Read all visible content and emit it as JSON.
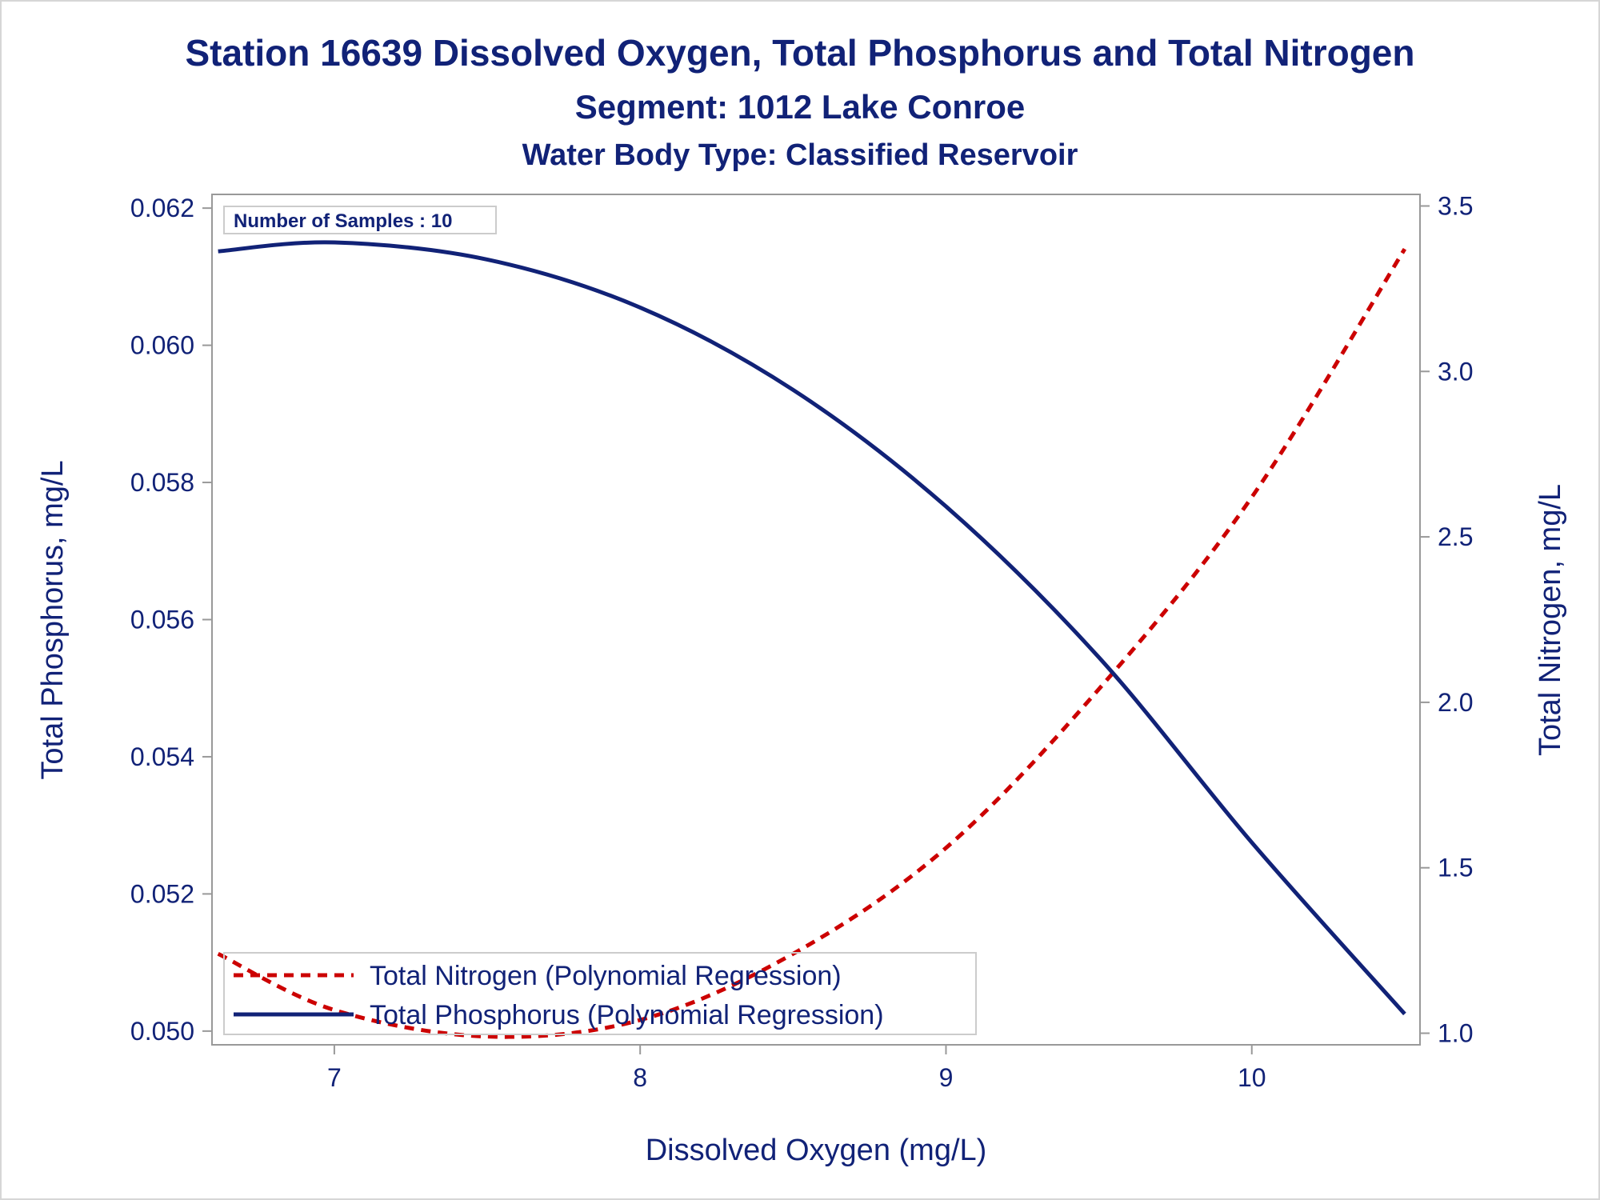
{
  "chart_data": {
    "type": "line",
    "title": "Station 16639  Dissolved Oxygen, Total Phosphorus and Total Nitrogen",
    "subtitle": "Segment: 1012  Lake Conroe",
    "subtitle2": "Water Body Type: Classified Reservoir",
    "xlabel": "Dissolved Oxygen (mg/L)",
    "ylabel_left": "Total Phosphorus, mg/L",
    "ylabel_right": "Total Nitrogen, mg/L",
    "xlim": [
      6.6,
      10.55
    ],
    "ylim_left": [
      0.0498,
      0.0622
    ],
    "ylim_right": [
      0.965,
      3.535
    ],
    "x_ticks": [
      "7",
      "8",
      "9",
      "10"
    ],
    "y_left_ticks": [
      "0.050",
      "0.052",
      "0.054",
      "0.056",
      "0.058",
      "0.060",
      "0.062"
    ],
    "y_right_ticks": [
      "1.0",
      "1.5",
      "2.0",
      "2.5",
      "3.0",
      "3.5"
    ],
    "inset_label": "Number of Samples : 10",
    "grid": false,
    "legend_position": "bottom-left inside",
    "series": [
      {
        "name": "Total Nitrogen (Polynomial Regression)",
        "axis": "right",
        "style": "dashed",
        "color": "#cc0000",
        "x": [
          6.62,
          7.0,
          7.5,
          8.0,
          8.5,
          9.0,
          9.5,
          10.0,
          10.5
        ],
        "y": [
          1.24,
          1.07,
          0.99,
          1.04,
          1.24,
          1.56,
          2.04,
          2.62,
          3.37
        ]
      },
      {
        "name": "Total Phosphorus (Polynomial Regression)",
        "axis": "left",
        "style": "solid",
        "color": "#112277",
        "x": [
          6.62,
          7.0,
          7.5,
          8.0,
          8.5,
          9.0,
          9.5,
          10.0,
          10.5
        ],
        "y": [
          0.06137,
          0.0615,
          0.06125,
          0.06055,
          0.05935,
          0.05765,
          0.05545,
          0.05275,
          0.05025
        ]
      }
    ]
  }
}
